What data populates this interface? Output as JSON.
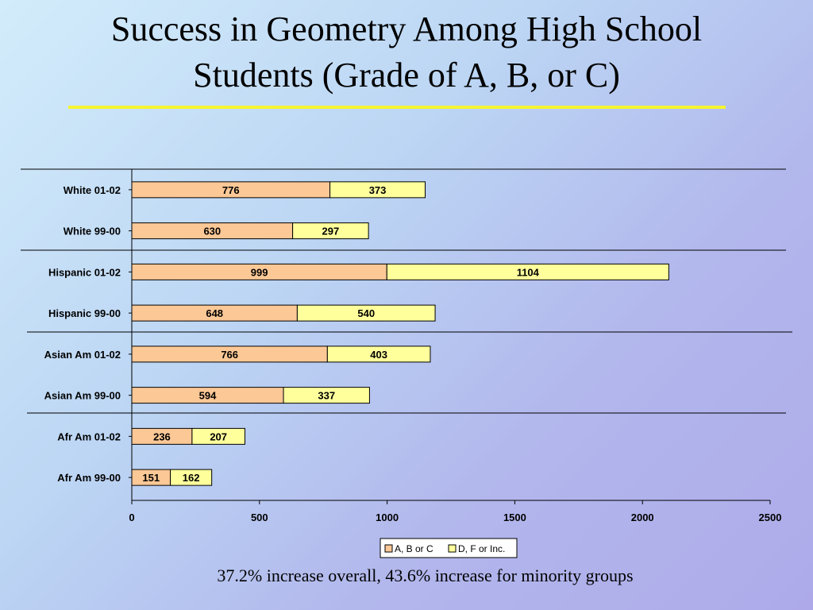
{
  "title": {
    "line1": "Success in Geometry Among High School",
    "line2": "Students (Grade of A, B, or C)"
  },
  "caption": "37.2% increase overall, 43.6% increase for minority groups",
  "colors": {
    "abc": "#fcc896",
    "dfinc": "#ffff9c",
    "title_rule": "#f5f530"
  },
  "chart_data": {
    "type": "bar",
    "orientation": "horizontal",
    "stacked": true,
    "categories": [
      "White 01-02",
      "White 99-00",
      "Hispanic 01-02",
      "Hispanic 99-00",
      "Asian Am 01-02",
      "Asian Am 99-00",
      "Afr Am 01-02",
      "Afr Am 99-00"
    ],
    "series": [
      {
        "name": "A, B or C",
        "values": [
          776,
          630,
          999,
          648,
          766,
          594,
          236,
          151
        ]
      },
      {
        "name": "D, F or Inc.",
        "values": [
          373,
          297,
          1104,
          540,
          403,
          337,
          207,
          162
        ]
      }
    ],
    "xlim": [
      0,
      2500
    ],
    "xticks": [
      0,
      500,
      1000,
      1500,
      2000,
      2500
    ],
    "legend": "bottom",
    "title": "",
    "xlabel": "",
    "ylabel": ""
  }
}
